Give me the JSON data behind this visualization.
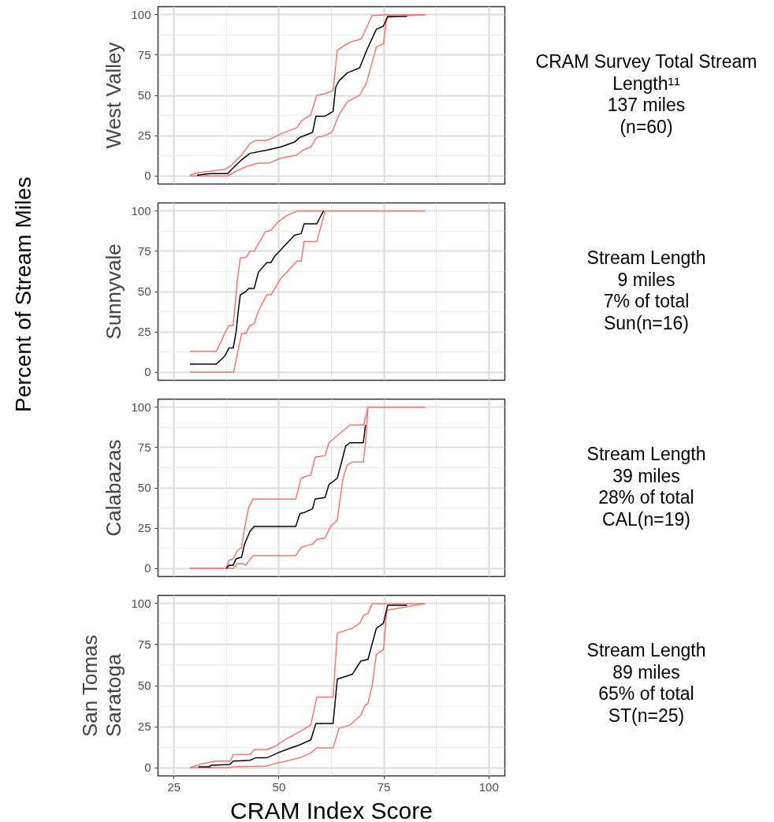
{
  "chart_data": [
    {
      "type": "line",
      "title": "West Valley",
      "xlim": [
        21.2,
        103.8
      ],
      "ylim": [
        -5,
        105
      ],
      "xticks": [
        25,
        50,
        75,
        100
      ],
      "yticks": [
        0,
        25,
        50,
        75,
        100
      ],
      "grid": true,
      "tick_labels": "y",
      "annotations": [
        "CRAM Survey Total Stream Length¹¹",
        "137 miles",
        "(n=60)"
      ],
      "series": [
        {
          "color": "#f8766d",
          "x": [
            28.8,
            37.8,
            39.8,
            42.4,
            45.1,
            47.7,
            50.4,
            54.3,
            55.7,
            57.6,
            59,
            60.9,
            62.6,
            64.3,
            66.3,
            69.2,
            70.9,
            73.2,
            74.9,
            75.7,
            78.2,
            84.8
          ],
          "values": [
            0,
            0,
            3,
            6,
            8,
            8,
            11,
            13,
            16,
            18,
            24,
            25,
            27,
            38,
            46,
            50,
            58,
            80,
            82,
            98,
            99,
            100
          ]
        },
        {
          "color": "#f8766d",
          "x": [
            28.8,
            30.5,
            37.1,
            38.4,
            41.1,
            43.1,
            44.4,
            47.1,
            50.4,
            54.3,
            55.3,
            57.6,
            59,
            60.9,
            62.9,
            63.9,
            66.9,
            69.6,
            72.2,
            75.5,
            84.8
          ],
          "values": [
            0.5,
            2,
            4,
            6,
            13,
            20,
            22,
            22,
            26,
            30,
            34,
            38,
            50,
            51,
            53,
            78,
            83,
            85,
            99.5,
            100,
            100
          ]
        },
        {
          "color": "#000000",
          "x": [
            30.5,
            33.8,
            37.8,
            39.1,
            41.1,
            43.1,
            47.1,
            50.4,
            53.7,
            55,
            58,
            58.8,
            60.9,
            62.9,
            63.5,
            64.3,
            66.3,
            69.2,
            70.9,
            73.2,
            74.9,
            75.9,
            80.5
          ],
          "values": [
            0.5,
            1.5,
            1.5,
            5,
            10,
            14,
            16,
            18,
            21,
            24,
            27,
            37,
            37,
            40,
            55,
            59,
            64,
            67,
            78,
            91,
            93,
            99,
            99
          ]
        }
      ]
    },
    {
      "type": "line",
      "title": "Sunnyvale",
      "ylabel": "Percent of Stream Miles",
      "xlim": [
        21.2,
        103.8
      ],
      "ylim": [
        -5,
        105
      ],
      "xticks": [
        25,
        50,
        75,
        100
      ],
      "yticks": [
        0,
        25,
        50,
        75,
        100
      ],
      "grid": true,
      "tick_labels": "y",
      "annotations": [
        "Stream Length",
        "9 miles",
        "7% of total",
        "Sun(n=16)"
      ],
      "series": [
        {
          "color": "#f8766d",
          "x": [
            28.8,
            35.1,
            37.1,
            38.1,
            39.1,
            40.1,
            40.8,
            42.1,
            43.1,
            44.1,
            46.7,
            48.1,
            49.7,
            51.7,
            54.3,
            84.8
          ],
          "values": [
            13,
            13,
            24,
            29,
            29,
            57,
            71,
            71,
            75,
            75,
            87,
            88,
            93,
            97,
            100,
            100
          ]
        },
        {
          "color": "#f8766d",
          "x": [
            28.8,
            39.2,
            40.4,
            41.1,
            42.1,
            43.1,
            44.1,
            45.1,
            47.1,
            48.1,
            50.4,
            54.3,
            55.3,
            56,
            59,
            61
          ],
          "values": [
            0,
            0,
            15,
            24,
            24,
            29,
            30,
            38,
            48,
            48,
            58,
            69,
            69,
            81,
            81,
            100
          ]
        },
        {
          "color": "#000000",
          "x": [
            28.8,
            35.1,
            37.1,
            38.1,
            39.1,
            39.8,
            40.4,
            40.8,
            42.1,
            42.8,
            44.1,
            45.1,
            47.1,
            48.1,
            49,
            53.7,
            55.3,
            56,
            59,
            60.6
          ],
          "values": [
            5,
            5,
            10,
            15,
            15,
            25,
            40,
            48,
            50,
            52,
            52,
            62,
            68,
            68,
            72,
            85,
            86,
            92,
            92,
            100
          ]
        }
      ]
    },
    {
      "type": "line",
      "title": "Calabazas",
      "xlim": [
        21.2,
        103.8
      ],
      "ylim": [
        -5,
        105
      ],
      "xticks": [
        25,
        50,
        75,
        100
      ],
      "yticks": [
        0,
        25,
        50,
        75,
        100
      ],
      "grid": true,
      "tick_labels": "y",
      "annotations": [
        "Stream Length",
        "39 miles",
        "28% of total",
        "CAL(n=19)"
      ],
      "series": [
        {
          "color": "#f8766d",
          "x": [
            28.8,
            37.5,
            38.1,
            39.1,
            40.1,
            41.1,
            41.8,
            42.8,
            43.8,
            54,
            55.3,
            56.3,
            57.6,
            58.6,
            61,
            61.9,
            66.9,
            70.2,
            71.2,
            84.8
          ],
          "values": [
            0,
            0,
            5,
            6,
            11,
            13,
            25,
            38,
            43,
            43,
            56,
            57,
            58,
            69,
            70,
            78,
            89,
            89,
            100,
            100
          ]
        },
        {
          "color": "#f8766d",
          "x": [
            28.8,
            39.1,
            40.1,
            41.4,
            42.1,
            43.8,
            54,
            55.3,
            56.3,
            58,
            59,
            61,
            62.3,
            63.9,
            65.2,
            66.2,
            67.5,
            70.1,
            70.7,
            71.2
          ],
          "values": [
            0,
            0,
            3,
            3,
            2,
            8,
            8,
            13,
            14,
            15,
            18,
            19,
            26,
            30,
            55,
            64,
            66,
            66,
            80,
            100
          ]
        },
        {
          "color": "#000000",
          "x": [
            37.5,
            38.1,
            39.1,
            39.8,
            41.1,
            41.8,
            43.1,
            44.1,
            54,
            55,
            56.3,
            58,
            58.6,
            61,
            61.9,
            63.9,
            65.9,
            66.9,
            70.1,
            70.6
          ],
          "values": [
            0,
            2,
            2,
            6,
            7,
            15,
            23,
            26,
            26,
            34,
            35,
            37,
            43,
            44,
            52,
            56,
            76,
            78,
            78,
            89
          ]
        }
      ]
    },
    {
      "type": "line",
      "title": "San Tomas\nSaratoga",
      "xlabel": "CRAM Index Score",
      "xlim": [
        21.2,
        103.8
      ],
      "ylim": [
        -5,
        105
      ],
      "xticks": [
        25,
        50,
        75,
        100
      ],
      "yticks": [
        0,
        25,
        50,
        75,
        100
      ],
      "grid": true,
      "annotations": [
        "Stream Length",
        "89 miles",
        "65% of total",
        "ST(n=25)"
      ],
      "series": [
        {
          "color": "#f8766d",
          "x": [
            28.8,
            31.1,
            34.7,
            38.4,
            39.1,
            43.1,
            44.1,
            47.1,
            49.1,
            51.4,
            55,
            57.6,
            59,
            62.9,
            63.9,
            67.5,
            69.2,
            70.2,
            71.2,
            72.2,
            84.8
          ],
          "values": [
            0,
            2,
            4,
            4,
            8,
            8,
            11,
            11,
            13,
            17,
            22,
            26,
            43,
            43,
            82,
            85,
            88,
            93,
            94,
            100,
            100
          ]
        },
        {
          "color": "#f8766d",
          "x": [
            28.8,
            38.4,
            39.1,
            47.1,
            49.1,
            51.7,
            55,
            57.6,
            59,
            62.9,
            64.3,
            66.9,
            69.5,
            70.5,
            71.2,
            72.2,
            73.2,
            74.9,
            75.7,
            84.8
          ],
          "values": [
            0,
            0,
            0.5,
            1,
            2.5,
            4,
            6,
            9,
            12,
            12,
            24,
            26,
            32,
            38,
            39,
            50,
            69,
            72,
            96,
            100
          ]
        },
        {
          "color": "#000000",
          "x": [
            30.8,
            33.5,
            33.8,
            38.3,
            39.1,
            43.1,
            44.4,
            47.1,
            49.7,
            51.7,
            55,
            57.6,
            58.8,
            62.9,
            63.9,
            67.5,
            69.5,
            71.2,
            73.2,
            74.9,
            75.9,
            80.5
          ],
          "values": [
            0.5,
            0.5,
            1.5,
            2,
            4,
            4.5,
            6,
            6,
            9,
            11,
            14,
            17,
            27,
            27,
            54,
            57,
            65,
            66,
            85,
            88,
            99,
            99
          ]
        }
      ]
    }
  ]
}
